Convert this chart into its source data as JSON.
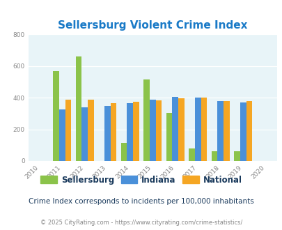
{
  "title": "Sellersburg Violent Crime Index",
  "years": [
    2010,
    2011,
    2012,
    2013,
    2014,
    2015,
    2016,
    2017,
    2018,
    2019,
    2020
  ],
  "data_years": [
    2011,
    2012,
    2013,
    2014,
    2015,
    2016,
    2017,
    2018,
    2019
  ],
  "sellersburg": [
    570,
    660,
    0,
    115,
    515,
    305,
    80,
    60,
    62
  ],
  "indiana": [
    325,
    340,
    350,
    365,
    390,
    405,
    400,
    380,
    370
  ],
  "national": [
    390,
    390,
    365,
    375,
    385,
    395,
    400,
    380,
    378
  ],
  "bar_width": 0.27,
  "color_sellersburg": "#8bc34a",
  "color_indiana": "#4a90d9",
  "color_national": "#f5a623",
  "bg_color": "#e8f4f8",
  "ylim": [
    0,
    800
  ],
  "yticks": [
    0,
    200,
    400,
    600,
    800
  ],
  "title_color": "#1a7ac7",
  "title_fontsize": 11,
  "subtitle": "Crime Index corresponds to incidents per 100,000 inhabitants",
  "footer": "© 2025 CityRating.com - https://www.cityrating.com/crime-statistics/",
  "subtitle_color": "#1a3a5c",
  "footer_color": "#888888",
  "legend_labels": [
    "Sellersburg",
    "Indiana",
    "National"
  ]
}
